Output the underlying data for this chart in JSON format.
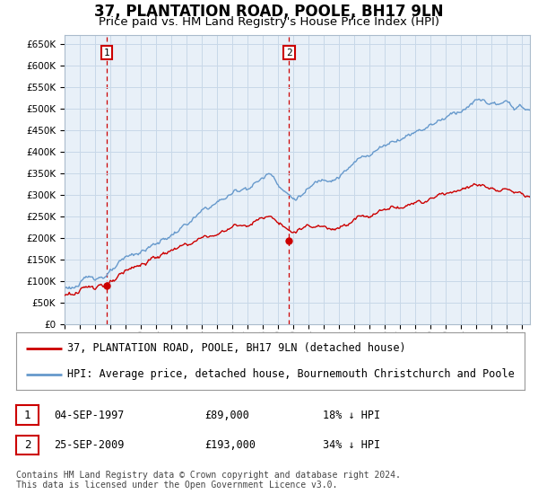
{
  "title": "37, PLANTATION ROAD, POOLE, BH17 9LN",
  "subtitle": "Price paid vs. HM Land Registry's House Price Index (HPI)",
  "legend_line1": "37, PLANTATION ROAD, POOLE, BH17 9LN (detached house)",
  "legend_line2": "HPI: Average price, detached house, Bournemouth Christchurch and Poole",
  "footnote": "Contains HM Land Registry data © Crown copyright and database right 2024.\nThis data is licensed under the Open Government Licence v3.0.",
  "sale1_date": "04-SEP-1997",
  "sale1_price": "£89,000",
  "sale1_hpi": "18% ↓ HPI",
  "sale2_date": "25-SEP-2009",
  "sale2_price": "£193,000",
  "sale2_hpi": "34% ↓ HPI",
  "sale1_year": 1997.75,
  "sale1_value": 89000,
  "sale2_year": 2009.72,
  "sale2_value": 193000,
  "ylim": [
    0,
    670000
  ],
  "xlim_start": 1995.0,
  "xlim_end": 2025.5,
  "hpi_color": "#6699cc",
  "sale_color": "#cc0000",
  "vline_color": "#cc0000",
  "grid_color": "#c8d8e8",
  "plot_bg_color": "#e8f0f8",
  "title_fontsize": 12,
  "subtitle_fontsize": 9.5,
  "tick_fontsize": 7.5,
  "legend_fontsize": 8.5,
  "table_fontsize": 8.5
}
